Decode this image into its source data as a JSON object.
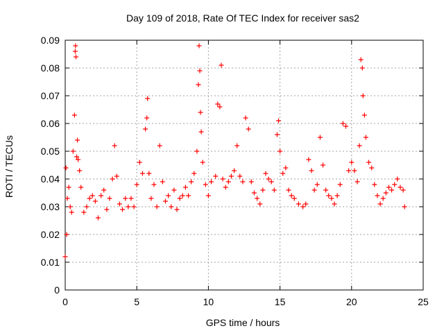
{
  "chart_data": {
    "type": "scatter",
    "title": "Day 109 of 2018, Rate Of TEC Index for receiver sas2",
    "xlabel": "GPS time / hours",
    "ylabel": "ROTI / TECUs",
    "xlim": [
      0,
      25
    ],
    "ylim": [
      0,
      0.09
    ],
    "x_ticks": [
      "0",
      "5",
      "10",
      "15",
      "20",
      "25"
    ],
    "y_ticks": [
      "0",
      "0.01",
      "0.02",
      "0.03",
      "0.04",
      "0.05",
      "0.06",
      "0.07",
      "0.08",
      "0.09"
    ],
    "grid": true,
    "marker": "+",
    "color": "#ff0000",
    "series": [
      {
        "values": [
          [
            0.0,
            0.012
          ],
          [
            0.05,
            0.044
          ],
          [
            0.1,
            0.02
          ],
          [
            0.15,
            0.033
          ],
          [
            0.25,
            0.037
          ],
          [
            0.35,
            0.03
          ],
          [
            0.45,
            0.028
          ],
          [
            0.55,
            0.05
          ],
          [
            0.65,
            0.063
          ],
          [
            0.7,
            0.086
          ],
          [
            0.72,
            0.088
          ],
          [
            0.75,
            0.084
          ],
          [
            0.8,
            0.048
          ],
          [
            0.85,
            0.054
          ],
          [
            0.9,
            0.047
          ],
          [
            1.0,
            0.043
          ],
          [
            1.1,
            0.037
          ],
          [
            1.3,
            0.028
          ],
          [
            1.5,
            0.03
          ],
          [
            1.7,
            0.033
          ],
          [
            1.9,
            0.034
          ],
          [
            2.1,
            0.032
          ],
          [
            2.3,
            0.026
          ],
          [
            2.5,
            0.034
          ],
          [
            2.7,
            0.036
          ],
          [
            2.9,
            0.029
          ],
          [
            3.1,
            0.033
          ],
          [
            3.3,
            0.04
          ],
          [
            3.45,
            0.052
          ],
          [
            3.6,
            0.041
          ],
          [
            3.8,
            0.031
          ],
          [
            4.0,
            0.029
          ],
          [
            4.2,
            0.033
          ],
          [
            4.4,
            0.03
          ],
          [
            4.6,
            0.033
          ],
          [
            4.8,
            0.03
          ],
          [
            5.0,
            0.038
          ],
          [
            5.2,
            0.046
          ],
          [
            5.4,
            0.042
          ],
          [
            5.6,
            0.058
          ],
          [
            5.7,
            0.062
          ],
          [
            5.75,
            0.069
          ],
          [
            5.85,
            0.042
          ],
          [
            6.0,
            0.033
          ],
          [
            6.2,
            0.038
          ],
          [
            6.4,
            0.03
          ],
          [
            6.6,
            0.052
          ],
          [
            6.8,
            0.039
          ],
          [
            7.0,
            0.032
          ],
          [
            7.2,
            0.034
          ],
          [
            7.4,
            0.03
          ],
          [
            7.6,
            0.036
          ],
          [
            7.8,
            0.029
          ],
          [
            8.0,
            0.033
          ],
          [
            8.2,
            0.034
          ],
          [
            8.4,
            0.037
          ],
          [
            8.6,
            0.034
          ],
          [
            8.8,
            0.039
          ],
          [
            9.0,
            0.042
          ],
          [
            9.2,
            0.05
          ],
          [
            9.3,
            0.074
          ],
          [
            9.35,
            0.088
          ],
          [
            9.4,
            0.079
          ],
          [
            9.45,
            0.064
          ],
          [
            9.5,
            0.057
          ],
          [
            9.6,
            0.046
          ],
          [
            9.8,
            0.038
          ],
          [
            10.0,
            0.034
          ],
          [
            10.2,
            0.039
          ],
          [
            10.5,
            0.041
          ],
          [
            10.65,
            0.067
          ],
          [
            10.8,
            0.066
          ],
          [
            10.9,
            0.081
          ],
          [
            11.0,
            0.04
          ],
          [
            11.2,
            0.037
          ],
          [
            11.4,
            0.039
          ],
          [
            11.6,
            0.041
          ],
          [
            11.8,
            0.043
          ],
          [
            12.0,
            0.052
          ],
          [
            12.2,
            0.041
          ],
          [
            12.4,
            0.039
          ],
          [
            12.6,
            0.062
          ],
          [
            12.8,
            0.058
          ],
          [
            13.0,
            0.039
          ],
          [
            13.2,
            0.035
          ],
          [
            13.4,
            0.033
          ],
          [
            13.6,
            0.031
          ],
          [
            13.8,
            0.036
          ],
          [
            14.0,
            0.042
          ],
          [
            14.2,
            0.04
          ],
          [
            14.4,
            0.039
          ],
          [
            14.6,
            0.036
          ],
          [
            14.8,
            0.056
          ],
          [
            14.9,
            0.061
          ],
          [
            15.0,
            0.05
          ],
          [
            15.2,
            0.042
          ],
          [
            15.4,
            0.044
          ],
          [
            15.6,
            0.036
          ],
          [
            15.8,
            0.034
          ],
          [
            16.0,
            0.033
          ],
          [
            16.3,
            0.031
          ],
          [
            16.6,
            0.03
          ],
          [
            16.8,
            0.031
          ],
          [
            17.0,
            0.047
          ],
          [
            17.2,
            0.043
          ],
          [
            17.4,
            0.036
          ],
          [
            17.6,
            0.038
          ],
          [
            17.8,
            0.055
          ],
          [
            18.0,
            0.045
          ],
          [
            18.2,
            0.036
          ],
          [
            18.4,
            0.034
          ],
          [
            18.6,
            0.033
          ],
          [
            18.8,
            0.031
          ],
          [
            19.0,
            0.034
          ],
          [
            19.2,
            0.038
          ],
          [
            19.4,
            0.06
          ],
          [
            19.6,
            0.059
          ],
          [
            19.8,
            0.043
          ],
          [
            20.0,
            0.046
          ],
          [
            20.2,
            0.043
          ],
          [
            20.4,
            0.039
          ],
          [
            20.55,
            0.052
          ],
          [
            20.65,
            0.083
          ],
          [
            20.75,
            0.08
          ],
          [
            20.8,
            0.07
          ],
          [
            20.9,
            0.063
          ],
          [
            21.0,
            0.055
          ],
          [
            21.2,
            0.046
          ],
          [
            21.4,
            0.044
          ],
          [
            21.6,
            0.038
          ],
          [
            21.8,
            0.034
          ],
          [
            22.0,
            0.031
          ],
          [
            22.2,
            0.033
          ],
          [
            22.4,
            0.035
          ],
          [
            22.6,
            0.037
          ],
          [
            22.8,
            0.036
          ],
          [
            23.0,
            0.038
          ],
          [
            23.2,
            0.04
          ],
          [
            23.4,
            0.037
          ],
          [
            23.6,
            0.036
          ],
          [
            23.7,
            0.03
          ]
        ]
      }
    ]
  }
}
